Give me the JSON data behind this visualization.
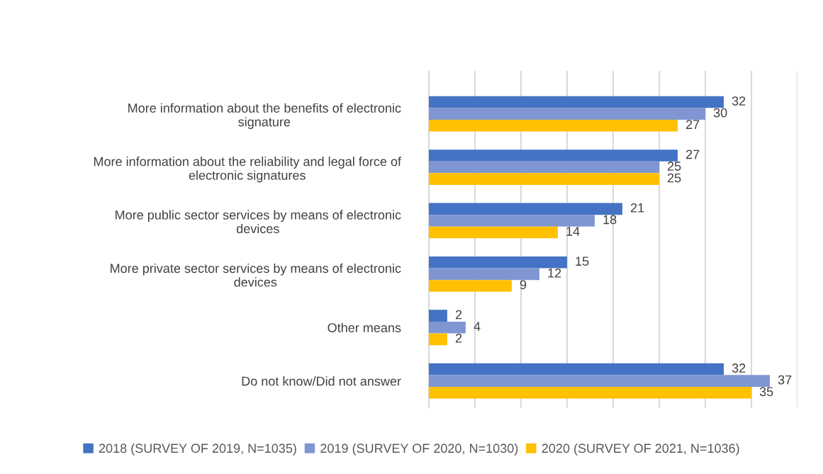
{
  "chart_data": {
    "type": "bar",
    "orientation": "horizontal",
    "categories": [
      "More information about the benefits of electronic\nsignature",
      "More information about the reliability and legal force of\nelectronic signatures",
      "More public sector services by means of electronic\ndevices",
      "More private sector services by means of electronic\ndevices",
      "Other means",
      "Do not know/Did not answer"
    ],
    "series": [
      {
        "name": "2018 (SURVEY OF 2019, N=1035)",
        "color": "#4472c4",
        "values": [
          32,
          27,
          21,
          15,
          2,
          32
        ]
      },
      {
        "name": "2019 (SURVEY OF 2020, N=1030)",
        "color": "#7f96d2",
        "values": [
          30,
          25,
          18,
          12,
          4,
          37
        ]
      },
      {
        "name": "2020 (SURVEY OF 2021, N=1036)",
        "color": "#ffc000",
        "values": [
          27,
          25,
          14,
          9,
          2,
          35
        ]
      }
    ],
    "xlim": [
      0,
      40
    ],
    "xticks": [
      {
        "value": 0,
        "label": null
      },
      {
        "value": 5,
        "label": null
      },
      {
        "value": 10,
        "label": null
      },
      {
        "value": 15,
        "label": null
      },
      {
        "value": 20,
        "label": null
      },
      {
        "value": 25,
        "label": null
      },
      {
        "value": 30,
        "label": null
      },
      {
        "value": 35,
        "label": null
      },
      {
        "value": 40,
        "label": null
      }
    ],
    "tick_labels": "y",
    "grid": "x",
    "legend": "bottom",
    "data_labels": true
  }
}
